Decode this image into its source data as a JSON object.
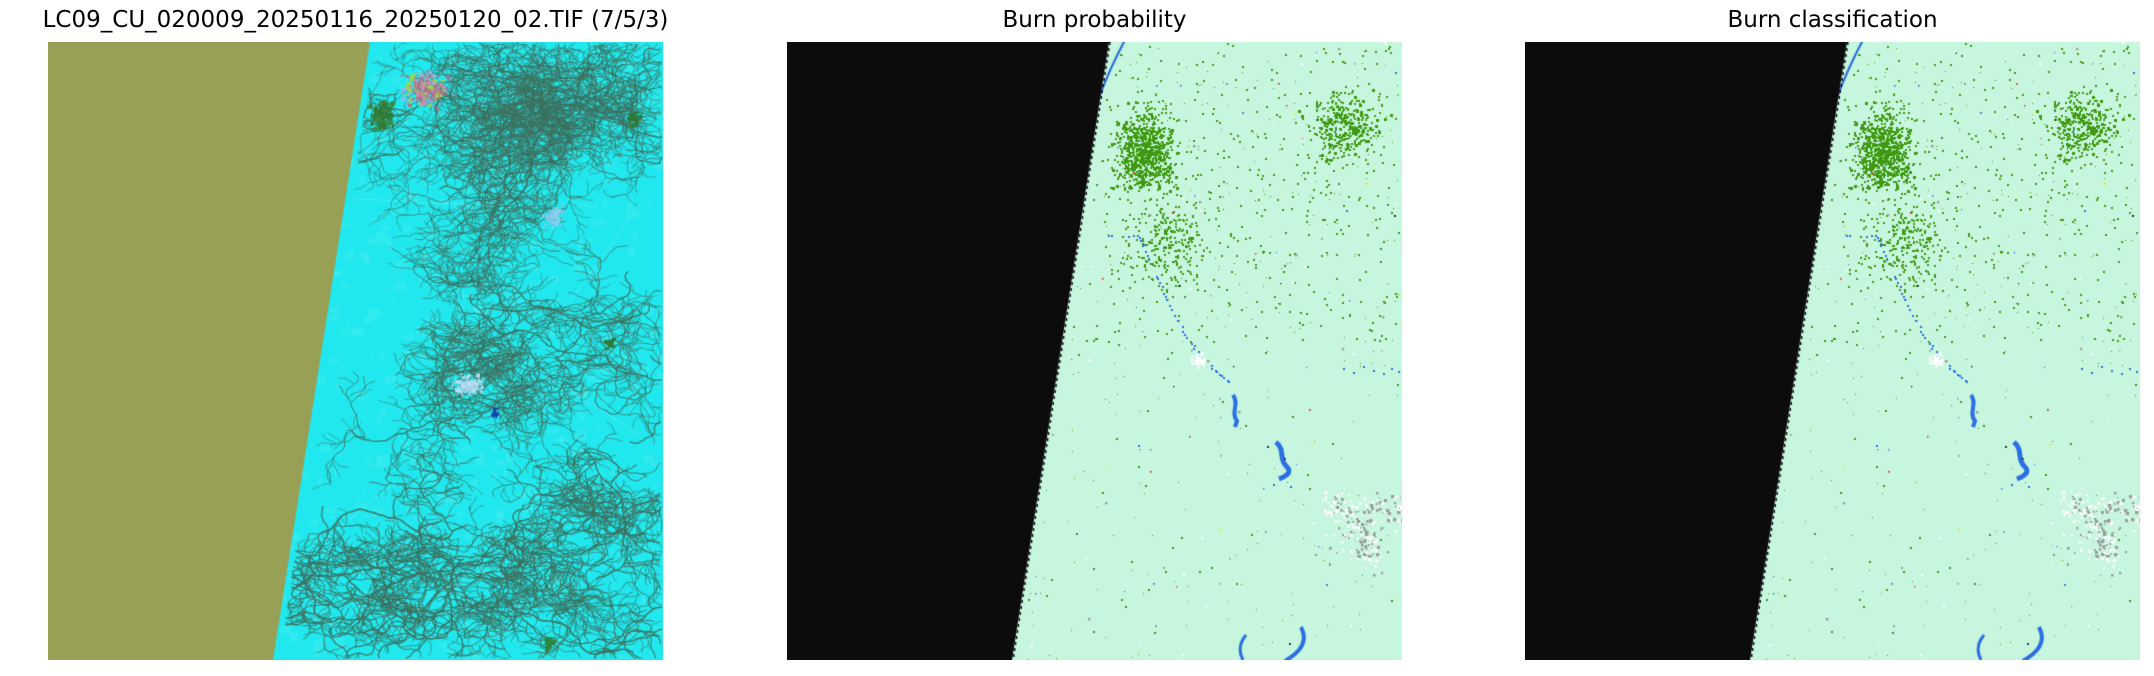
{
  "figure": {
    "background": "#ffffff",
    "title_color": "#000000",
    "panels": [
      {
        "id": "satellite-rgb",
        "title": "LC09_CU_020009_20250116_20250120_02.TIF (7/5/3)",
        "kind": "false-color-satellite-image",
        "palette": {
          "scene_fill": "#98a055",
          "terrain": "#21e8ee",
          "terrain_light": "#90f4f6",
          "drainage": "#3d6f5d",
          "urban": "#b0718e",
          "forest": "#2e7a38",
          "haze": "#a6d2ea",
          "water": "#1c3eb5",
          "water_light": "#7ac4ea"
        }
      },
      {
        "id": "burn-probability",
        "title": "Burn probability",
        "kind": "classified-burn-raster",
        "palette": {
          "nodata": "#0c0c0c",
          "background": "#c7f6de",
          "green_speckle": "#3f9a12",
          "water_blue": "#2b70e3",
          "white_speckle": "#ffffff",
          "gray_speckle": "#9b9b9b",
          "red_speckle": "#d43020",
          "yellow_speckle": "#e8e428"
        }
      },
      {
        "id": "burn-classification",
        "title": "Burn classification",
        "kind": "classified-burn-raster",
        "palette": {
          "nodata": "#0c0c0c",
          "background": "#c7f6de",
          "green_speckle": "#3f9a12",
          "water_blue": "#2b70e3",
          "white_speckle": "#ffffff",
          "gray_speckle": "#9b9b9b",
          "red_speckle": "#d43020",
          "yellow_speckle": "#e8e428"
        }
      }
    ]
  }
}
